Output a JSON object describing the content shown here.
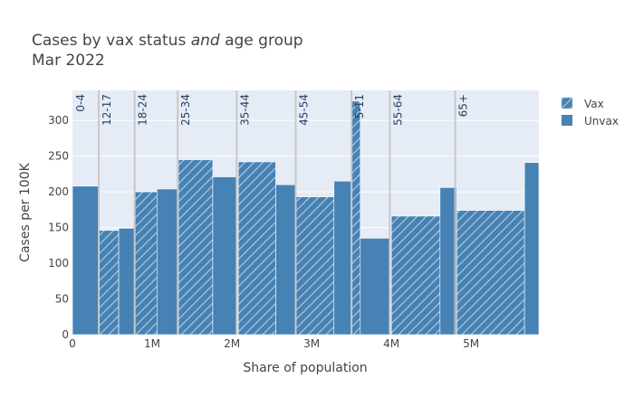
{
  "chart_data": {
    "type": "bar",
    "title_line1_prefix": "Cases by vax status ",
    "title_line1_italic": "and",
    "title_line1_suffix": " age group",
    "title_line2": "Mar 2022",
    "xlabel": "Share of population",
    "ylabel": "Cases per 100K",
    "xlim": [
      0,
      5.85
    ],
    "ylim": [
      0,
      342
    ],
    "x_ticks": [
      {
        "value": 0,
        "label": "0"
      },
      {
        "value": 1,
        "label": "1M"
      },
      {
        "value": 2,
        "label": "2M"
      },
      {
        "value": 3,
        "label": "3M"
      },
      {
        "value": 4,
        "label": "4M"
      },
      {
        "value": 5,
        "label": "5M"
      }
    ],
    "y_ticks": [
      0,
      50,
      100,
      150,
      200,
      250,
      300
    ],
    "grid": true,
    "legend_position": "top-right",
    "colors": {
      "bar": "#4682b4",
      "hatch": "#a9c4db",
      "plot_bg": "#e5ecf6",
      "grid": "#ffffff",
      "divider": "#c8c8c8"
    },
    "series": [
      {
        "name": "Vax",
        "pattern": "hatch",
        "bars": [
          {
            "x0": 0.33,
            "x1": 0.58,
            "value": 146
          },
          {
            "x0": 0.78,
            "x1": 1.06,
            "value": 200
          },
          {
            "x0": 1.33,
            "x1": 1.76,
            "value": 245
          },
          {
            "x0": 2.08,
            "x1": 2.55,
            "value": 242
          },
          {
            "x0": 2.8,
            "x1": 3.28,
            "value": 193
          },
          {
            "x0": 3.5,
            "x1": 3.61,
            "value": 327
          },
          {
            "x0": 4.0,
            "x1": 4.61,
            "value": 166
          },
          {
            "x0": 4.82,
            "x1": 5.67,
            "value": 174
          }
        ]
      },
      {
        "name": "Unvax",
        "pattern": "solid",
        "bars": [
          {
            "x0": 0.0,
            "x1": 0.33,
            "value": 208
          },
          {
            "x0": 0.58,
            "x1": 0.78,
            "value": 149
          },
          {
            "x0": 1.06,
            "x1": 1.32,
            "value": 204
          },
          {
            "x0": 1.76,
            "x1": 2.06,
            "value": 221
          },
          {
            "x0": 2.55,
            "x1": 2.8,
            "value": 210
          },
          {
            "x0": 3.28,
            "x1": 3.5,
            "value": 215
          },
          {
            "x0": 3.61,
            "x1": 3.98,
            "value": 135
          },
          {
            "x0": 4.61,
            "x1": 4.82,
            "value": 206
          },
          {
            "x0": 5.67,
            "x1": 5.85,
            "value": 241
          }
        ]
      }
    ],
    "age_groups": [
      {
        "label": "0-4",
        "start": 0.0
      },
      {
        "label": "12-17",
        "start": 0.33
      },
      {
        "label": "18-24",
        "start": 0.78
      },
      {
        "label": "25-34",
        "start": 1.32
      },
      {
        "label": "35-44",
        "start": 2.06
      },
      {
        "label": "45-54",
        "start": 2.8
      },
      {
        "label": "5-11",
        "start": 3.5
      },
      {
        "label": "55-64",
        "start": 3.98
      },
      {
        "label": "65+",
        "start": 4.8
      }
    ]
  }
}
